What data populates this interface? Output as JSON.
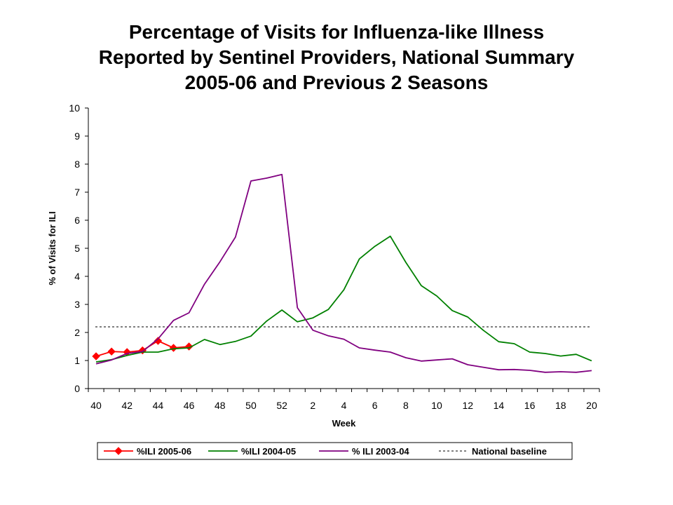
{
  "chart_data": {
    "type": "line",
    "title_lines": [
      "Percentage of Visits for Influenza-like Illness",
      "Reported by Sentinel Providers, National Summary",
      "2005-06 and Previous 2 Seasons"
    ],
    "xlabel": "Week",
    "ylabel": "% of Visits for ILI",
    "ylim": [
      0,
      10
    ],
    "yticks": [
      0,
      1,
      2,
      3,
      4,
      5,
      6,
      7,
      8,
      9,
      10
    ],
    "weeks": [
      40,
      41,
      42,
      43,
      44,
      45,
      46,
      47,
      48,
      49,
      50,
      51,
      52,
      1,
      2,
      3,
      4,
      5,
      6,
      7,
      8,
      9,
      10,
      11,
      12,
      13,
      14,
      15,
      16,
      17,
      18,
      19,
      20
    ],
    "xtick_labels": [
      "40",
      "42",
      "44",
      "46",
      "48",
      "50",
      "52",
      "2",
      "4",
      "6",
      "8",
      "10",
      "12",
      "14",
      "16",
      "18",
      "20"
    ],
    "series": [
      {
        "name": "%ILI 2005-06",
        "color": "#FF0000",
        "marker": "diamond",
        "values": [
          1.15,
          1.32,
          1.3,
          1.36,
          1.7,
          1.45,
          1.5
        ]
      },
      {
        "name": "%ILI 2004-05",
        "color": "#008000",
        "marker": "none",
        "values": [
          0.95,
          1.03,
          1.18,
          1.3,
          1.3,
          1.42,
          1.45,
          1.75,
          1.57,
          1.68,
          1.87,
          2.4,
          2.8,
          2.38,
          2.52,
          2.82,
          3.52,
          4.62,
          5.07,
          5.43,
          4.5,
          3.67,
          3.3,
          2.78,
          2.55,
          2.08,
          1.67,
          1.6,
          1.3,
          1.25,
          1.16,
          1.22,
          0.99
        ]
      },
      {
        "name": "% ILI 2003-04",
        "color": "#800080",
        "marker": "none",
        "values": [
          0.88,
          1.02,
          1.25,
          1.32,
          1.77,
          2.43,
          2.7,
          3.72,
          4.52,
          5.4,
          7.4,
          7.5,
          7.63,
          2.88,
          2.08,
          1.88,
          1.76,
          1.45,
          1.37,
          1.3,
          1.1,
          0.98,
          1.02,
          1.06,
          0.85,
          0.76,
          0.67,
          0.68,
          0.65,
          0.58,
          0.6,
          0.58,
          0.64
        ]
      },
      {
        "name": "National baseline",
        "color": "#000000",
        "marker": "none",
        "dashed": true,
        "constant": 2.2
      }
    ],
    "grid": false,
    "legend_position": "bottom"
  }
}
